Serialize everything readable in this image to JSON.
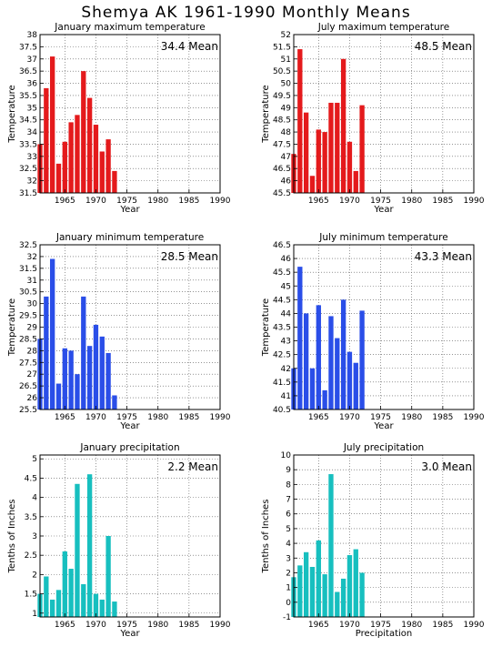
{
  "title": "Shemya AK   1961-1990 Monthly Means",
  "chart_data": [
    {
      "type": "bar",
      "title": "January maximum temperature",
      "xlabel": "Year",
      "ylabel": "Temperature",
      "mean_label": "34.4 Mean",
      "color": "#e41a1c",
      "ylim": [
        31.5,
        38
      ],
      "yticks": [
        31.5,
        32,
        32.5,
        33,
        33.5,
        34,
        34.5,
        35,
        35.5,
        36,
        36.5,
        37,
        37.5,
        38
      ],
      "xlim": [
        1961,
        1990
      ],
      "xticks": [
        1965,
        1970,
        1975,
        1980,
        1985,
        1990
      ],
      "years": [
        1961,
        1962,
        1963,
        1964,
        1965,
        1966,
        1967,
        1968,
        1969,
        1970,
        1971,
        1972,
        1973
      ],
      "values": [
        33.5,
        35.8,
        37.1,
        32.7,
        33.6,
        34.4,
        34.7,
        36.5,
        35.4,
        34.3,
        33.2,
        33.7,
        32.4
      ]
    },
    {
      "type": "bar",
      "title": "July maximum temperature",
      "xlabel": "Year",
      "ylabel": "Temperature",
      "mean_label": "48.5 Mean",
      "color": "#e41a1c",
      "ylim": [
        45.5,
        52
      ],
      "yticks": [
        45.5,
        46,
        46.5,
        47,
        47.5,
        48,
        48.5,
        49,
        49.5,
        50,
        50.5,
        51,
        51.5,
        52
      ],
      "xlim": [
        1961,
        1990
      ],
      "xticks": [
        1965,
        1970,
        1975,
        1980,
        1985,
        1990
      ],
      "years": [
        1961,
        1962,
        1963,
        1964,
        1965,
        1966,
        1967,
        1968,
        1969,
        1970,
        1971,
        1972
      ],
      "values": [
        47.1,
        51.4,
        48.8,
        46.2,
        48.1,
        48.0,
        49.2,
        49.2,
        51.0,
        47.6,
        46.4,
        49.1
      ]
    },
    {
      "type": "bar",
      "title": "January minimum temperature",
      "xlabel": "Year",
      "ylabel": "Temperature",
      "mean_label": "28.5 Mean",
      "color": "#2a4ee8",
      "ylim": [
        25.5,
        32.5
      ],
      "yticks": [
        25.5,
        26,
        26.5,
        27,
        27.5,
        28,
        28.5,
        29,
        29.5,
        30,
        30.5,
        31,
        31.5,
        32,
        32.5
      ],
      "xlim": [
        1961,
        1990
      ],
      "xticks": [
        1965,
        1970,
        1975,
        1980,
        1985,
        1990
      ],
      "years": [
        1961,
        1962,
        1963,
        1964,
        1965,
        1966,
        1967,
        1968,
        1969,
        1970,
        1971,
        1972,
        1973
      ],
      "values": [
        28.5,
        30.3,
        31.9,
        26.6,
        28.1,
        28.0,
        27.0,
        30.3,
        28.2,
        29.1,
        28.6,
        27.9,
        26.1
      ]
    },
    {
      "type": "bar",
      "title": "July minimum temperature",
      "xlabel": "Year",
      "ylabel": "Temperature",
      "mean_label": "43.3 Mean",
      "color": "#2a4ee8",
      "ylim": [
        40.5,
        46.5
      ],
      "yticks": [
        40.5,
        41,
        41.5,
        42,
        42.5,
        43,
        43.5,
        44,
        44.5,
        45,
        45.5,
        46,
        46.5
      ],
      "xlim": [
        1961,
        1990
      ],
      "xticks": [
        1965,
        1970,
        1975,
        1980,
        1985,
        1990
      ],
      "years": [
        1961,
        1962,
        1963,
        1964,
        1965,
        1966,
        1967,
        1968,
        1969,
        1970,
        1971,
        1972
      ],
      "values": [
        42.0,
        45.7,
        44.0,
        42.0,
        44.3,
        41.2,
        43.9,
        43.1,
        44.5,
        42.6,
        42.2,
        44.1
      ]
    },
    {
      "type": "bar",
      "title": "January precipitation",
      "xlabel": "Year",
      "ylabel": "Tenths of Inches",
      "mean_label": "2.2 Mean",
      "color": "#17bfbf",
      "ylim": [
        0.9,
        5.1
      ],
      "yticks": [
        1,
        1.5,
        2,
        2.5,
        3,
        3.5,
        4,
        4.5,
        5
      ],
      "xlim": [
        1961,
        1990
      ],
      "xticks": [
        1965,
        1970,
        1975,
        1980,
        1985,
        1990
      ],
      "years": [
        1961,
        1962,
        1963,
        1964,
        1965,
        1966,
        1967,
        1968,
        1969,
        1970,
        1971,
        1972,
        1973
      ],
      "values": [
        1.5,
        1.95,
        1.35,
        1.6,
        2.6,
        2.15,
        4.35,
        1.75,
        4.6,
        1.5,
        1.35,
        3.0,
        1.3
      ]
    },
    {
      "type": "bar",
      "title": "July precipitation",
      "xlabel": "Precipitation",
      "ylabel": "Tenths of Inches",
      "mean_label": "3.0 Mean",
      "color": "#17bfbf",
      "ylim": [
        -1,
        10
      ],
      "yticks": [
        -1,
        0,
        1,
        2,
        3,
        4,
        5,
        6,
        7,
        8,
        9,
        10
      ],
      "xlim": [
        1961,
        1990
      ],
      "xticks": [
        1965,
        1970,
        1975,
        1980,
        1985,
        1990
      ],
      "years": [
        1961,
        1962,
        1963,
        1964,
        1965,
        1966,
        1967,
        1968,
        1969,
        1970,
        1971,
        1972
      ],
      "values": [
        1.7,
        2.5,
        3.4,
        2.4,
        4.2,
        1.9,
        8.7,
        0.7,
        1.6,
        3.2,
        3.6,
        2.0
      ]
    }
  ]
}
